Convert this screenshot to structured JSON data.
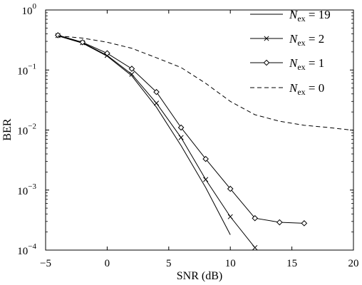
{
  "chart_data": {
    "type": "line",
    "title": "",
    "xlabel": "SNR (dB)",
    "ylabel": "BER",
    "xlim": [
      -5,
      20
    ],
    "ylim": [
      0.0001,
      1
    ],
    "yscale": "log",
    "grid": false,
    "legend_position": "top-right",
    "x_ticks": [
      -5,
      0,
      5,
      10,
      15,
      20
    ],
    "x_tick_labels": [
      "−5",
      "0",
      "5",
      "10",
      "15",
      "20"
    ],
    "y_ticks": [
      0.0001,
      0.001,
      0.01,
      0.1,
      1
    ],
    "y_tick_labels": [
      {
        "base": "10",
        "exp": "−4"
      },
      {
        "base": "10",
        "exp": "−3"
      },
      {
        "base": "10",
        "exp": "−2"
      },
      {
        "base": "10",
        "exp": "−1"
      },
      {
        "base": "10",
        "exp": "0"
      }
    ],
    "series": [
      {
        "name": "N_ex = 19",
        "legend": {
          "sym": "N",
          "sub": "ex",
          "rest": " = 19"
        },
        "line_style": "solid",
        "marker": "none",
        "color": "#000000",
        "points": [
          [
            -4,
            0.37
          ],
          [
            -2,
            0.28
          ],
          [
            0,
            0.17
          ],
          [
            2,
            0.08
          ],
          [
            4,
            0.024
          ],
          [
            6,
            0.0055
          ],
          [
            8,
            0.0011
          ],
          [
            10,
            0.00018
          ]
        ]
      },
      {
        "name": "N_ex = 2",
        "legend": {
          "sym": "N",
          "sub": "ex",
          "rest": " = 2"
        },
        "line_style": "solid",
        "marker": "x",
        "color": "#000000",
        "points": [
          [
            -4,
            0.375
          ],
          [
            -2,
            0.285
          ],
          [
            0,
            0.175
          ],
          [
            2,
            0.085
          ],
          [
            4,
            0.028
          ],
          [
            6,
            0.0075
          ],
          [
            8,
            0.0015
          ],
          [
            10,
            0.00036
          ],
          [
            12,
            0.00011
          ]
        ]
      },
      {
        "name": "N_ex = 1",
        "legend": {
          "sym": "N",
          "sub": "ex",
          "rest": " = 1"
        },
        "line_style": "solid",
        "marker": "diamond",
        "color": "#000000",
        "points": [
          [
            -4,
            0.38
          ],
          [
            -2,
            0.29
          ],
          [
            0,
            0.19
          ],
          [
            2,
            0.105
          ],
          [
            4,
            0.043
          ],
          [
            6,
            0.011
          ],
          [
            8,
            0.0033
          ],
          [
            10,
            0.00105
          ],
          [
            12,
            0.00034
          ],
          [
            14,
            0.00029
          ],
          [
            16,
            0.00028
          ]
        ]
      },
      {
        "name": "N_ex = 0",
        "legend": {
          "sym": "N",
          "sub": "ex",
          "rest": " = 0"
        },
        "line_style": "dashed",
        "marker": "none",
        "color": "#000000",
        "points": [
          [
            -4,
            0.37
          ],
          [
            -2,
            0.34
          ],
          [
            0,
            0.29
          ],
          [
            2,
            0.23
          ],
          [
            4,
            0.16
          ],
          [
            6,
            0.11
          ],
          [
            8,
            0.06
          ],
          [
            10,
            0.03
          ],
          [
            12,
            0.018
          ],
          [
            14,
            0.014
          ],
          [
            16,
            0.012
          ],
          [
            18,
            0.011
          ],
          [
            20,
            0.0099
          ]
        ]
      }
    ]
  }
}
